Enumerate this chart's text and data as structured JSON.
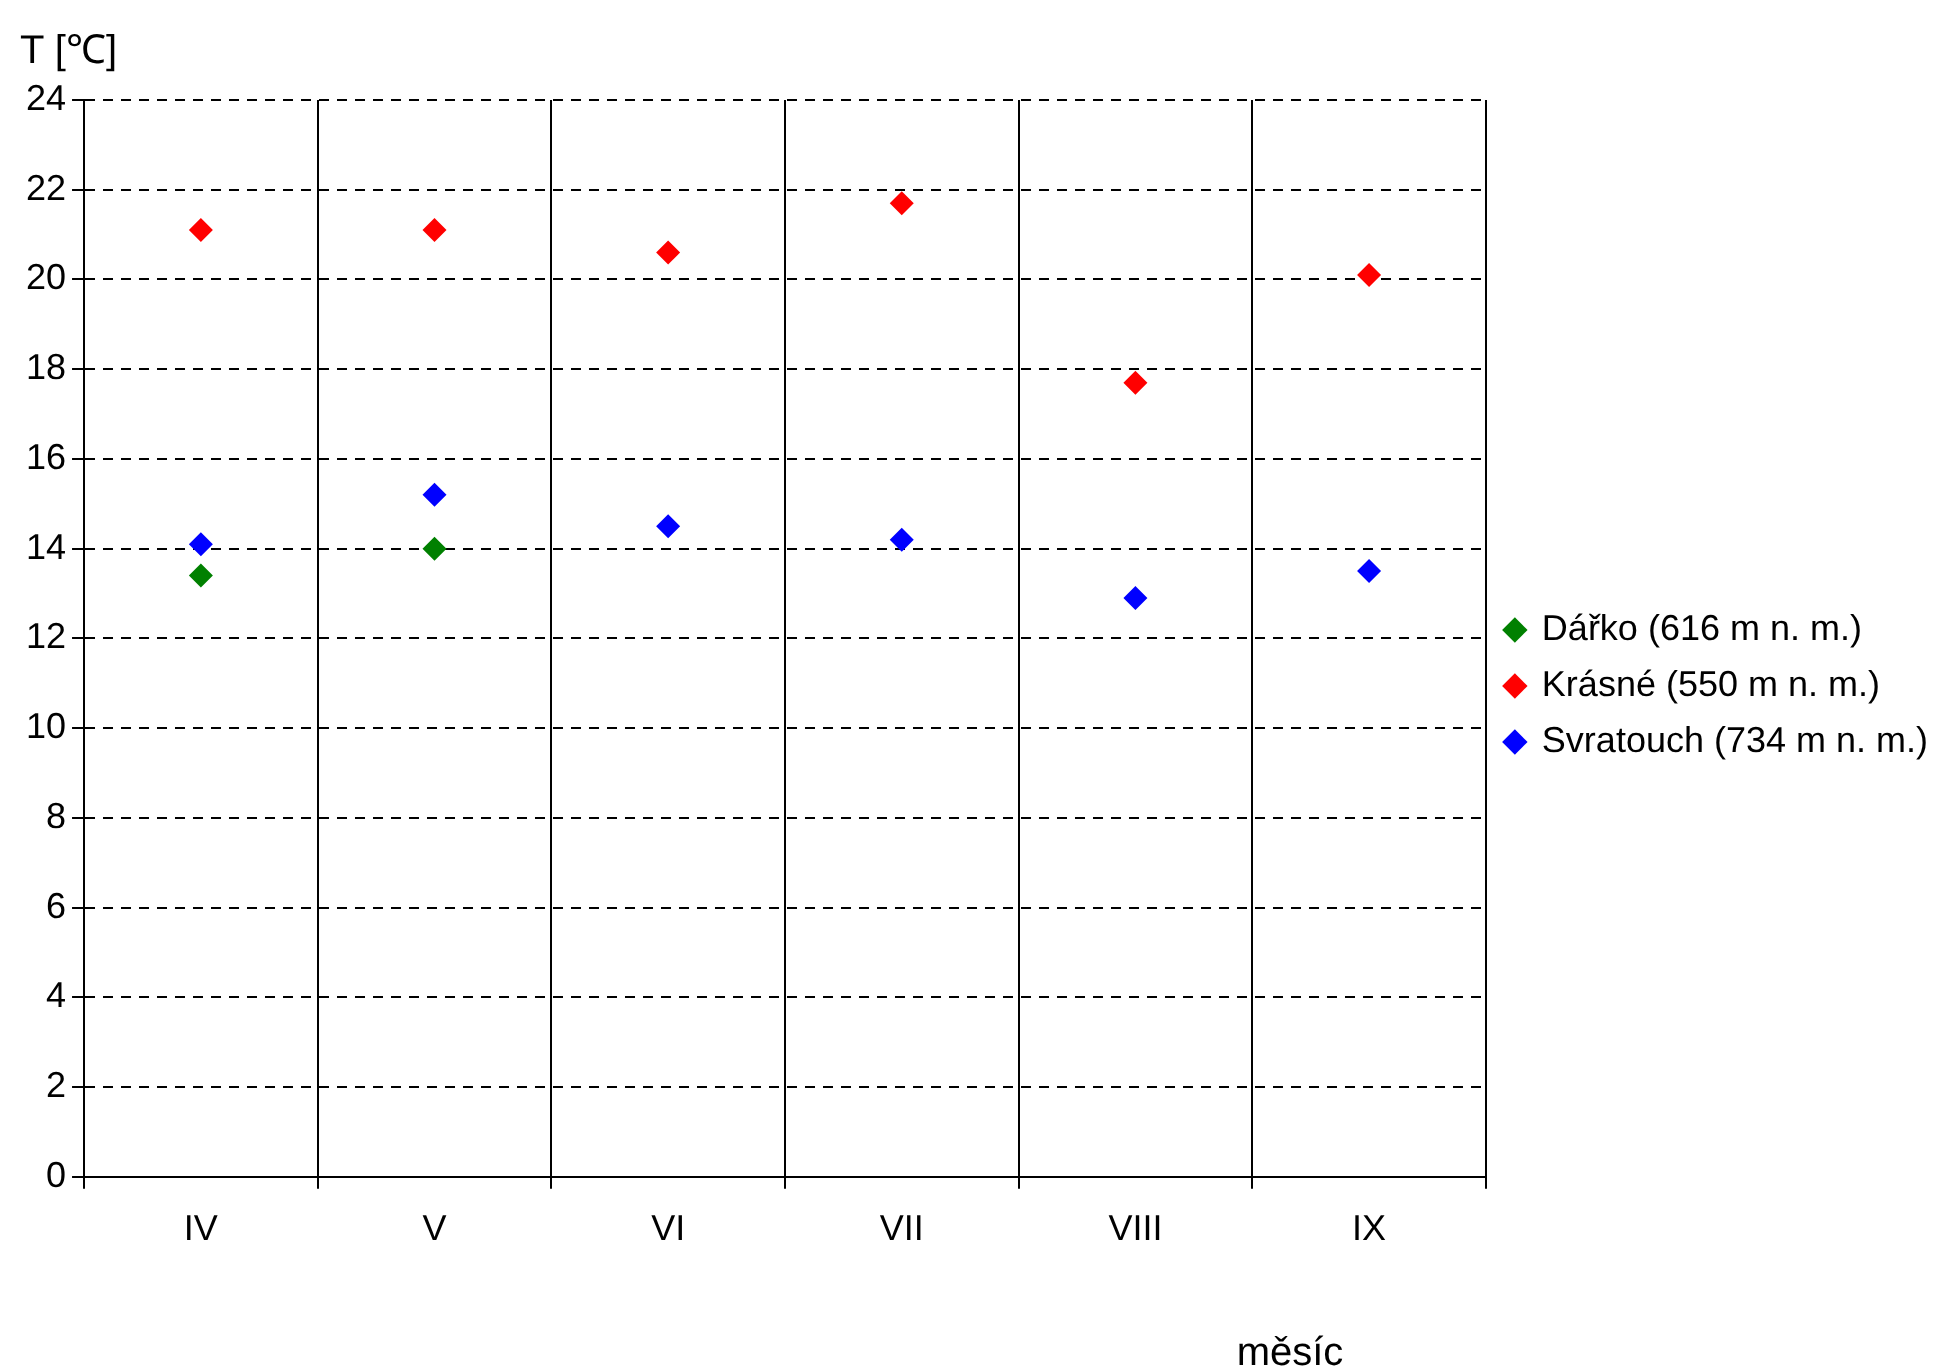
{
  "chart_data": {
    "type": "scatter",
    "xlabel": "měsíc",
    "ylabel": "T [℃]",
    "categories": [
      "IV",
      "V",
      "VI",
      "VII",
      "VIII",
      "IX"
    ],
    "series": [
      {
        "name": "Dářko (616 m n. m.)",
        "color": "#008000",
        "values": [
          13.4,
          14.0,
          null,
          null,
          null,
          null
        ]
      },
      {
        "name": "Krásné (550 m n. m.)",
        "color": "#ff0000",
        "values": [
          21.1,
          21.1,
          20.6,
          21.7,
          17.7,
          20.1
        ]
      },
      {
        "name": "Svratouch (734 m n. m.)",
        "color": "#0000ff",
        "values": [
          14.1,
          15.2,
          14.5,
          14.2,
          12.9,
          13.5
        ]
      }
    ],
    "ylim": [
      0,
      24
    ],
    "yticks": [
      0,
      2,
      4,
      6,
      8,
      10,
      12,
      14,
      16,
      18,
      20,
      22,
      24
    ],
    "grid": true,
    "legend": "right",
    "marker": "diamond"
  }
}
